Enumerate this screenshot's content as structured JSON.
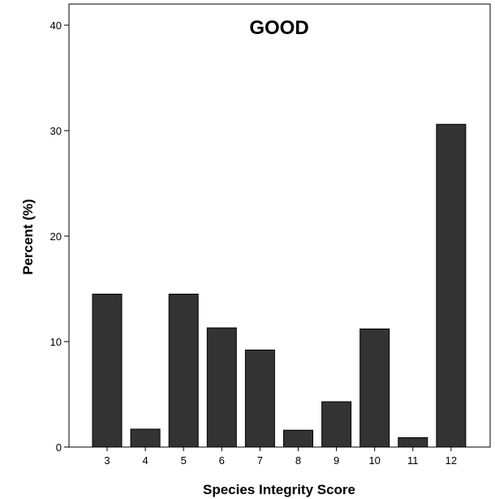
{
  "chart_data": {
    "type": "bar",
    "title": "GOOD",
    "xlabel": "Species Integrity Score",
    "ylabel": "Percent (%)",
    "categories": [
      "3",
      "4",
      "5",
      "6",
      "7",
      "8",
      "9",
      "10",
      "11",
      "12"
    ],
    "values": [
      14.5,
      1.7,
      14.5,
      11.3,
      9.2,
      1.6,
      4.3,
      11.2,
      0.9,
      30.6
    ],
    "ylim": [
      0,
      42
    ],
    "yticks": [
      "0",
      "10",
      "20",
      "30",
      "40"
    ],
    "grid": false,
    "bar_color": "#333333"
  }
}
